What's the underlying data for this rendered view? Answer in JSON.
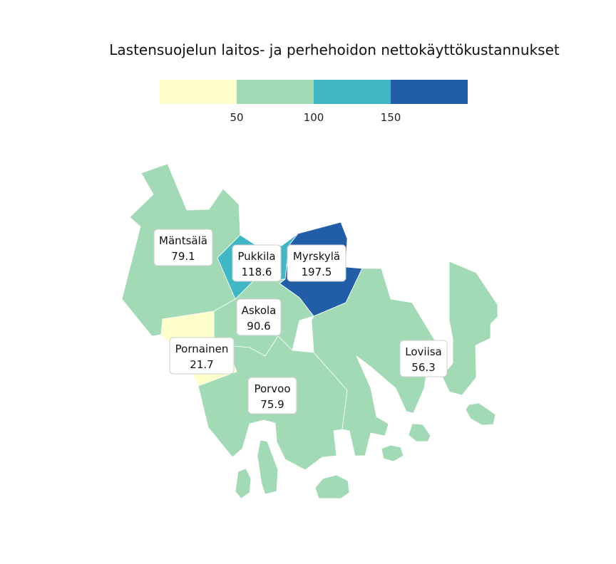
{
  "map": {
    "title": "Lastensuojelun laitos- ja perhehoidon nettokäyttökustannukset"
  },
  "legend": {
    "bins": [
      {
        "color": "#ffffcc"
      },
      {
        "color": "#a1dab4"
      },
      {
        "color": "#41b6c4"
      },
      {
        "color": "#225ea8"
      }
    ],
    "ticks": [
      "50",
      "100",
      "150"
    ]
  },
  "municipalities": [
    {
      "key": "mantsala",
      "name": "Mäntsälä",
      "value": "79.1",
      "color": "#a1dab4"
    },
    {
      "key": "pukkila",
      "name": "Pukkila",
      "value": "118.6",
      "color": "#41b6c4"
    },
    {
      "key": "myrskyla",
      "name": "Myrskylä",
      "value": "197.5",
      "color": "#225ea8"
    },
    {
      "key": "askola",
      "name": "Askola",
      "value": "90.6",
      "color": "#a1dab4"
    },
    {
      "key": "pornainen",
      "name": "Pornainen",
      "value": "21.7",
      "color": "#ffffcc"
    },
    {
      "key": "loviisa",
      "name": "Loviisa",
      "value": "56.3",
      "color": "#a1dab4"
    },
    {
      "key": "porvoo",
      "name": "Porvoo",
      "value": "75.9",
      "color": "#a1dab4"
    }
  ]
}
